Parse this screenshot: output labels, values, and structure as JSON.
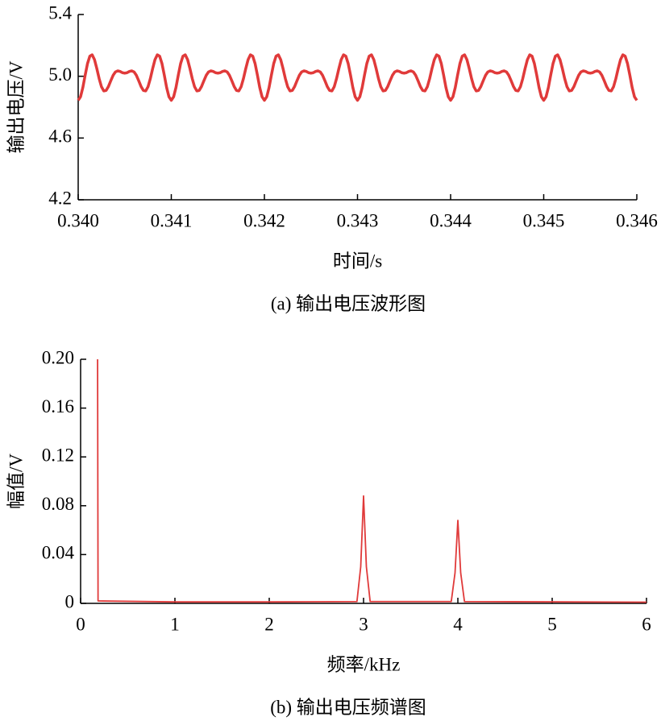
{
  "chart_data": [
    {
      "type": "line",
      "ylabel": "输出电压/V",
      "xlabel": "时间/s",
      "caption": "(a) 输出电压波形图",
      "color": "#e03a3a",
      "line_width": 3.5,
      "xlim": [
        0.34,
        0.346
      ],
      "ylim": [
        4.2,
        5.4
      ],
      "xticks": [
        {
          "value": 0.34,
          "label": "0.340"
        },
        {
          "value": 0.341,
          "label": "0.341"
        },
        {
          "value": 0.342,
          "label": "0.342"
        },
        {
          "value": 0.343,
          "label": "0.343"
        },
        {
          "value": 0.344,
          "label": "0.344"
        },
        {
          "value": 0.345,
          "label": "0.345"
        },
        {
          "value": 0.346,
          "label": "0.346"
        }
      ],
      "yticks": [
        4.2,
        4.6,
        {
          "value": 5.0,
          "label": "5.0"
        },
        5.4
      ],
      "x": [
        0.34,
        0.340025,
        0.34005,
        0.340075,
        0.3401,
        0.340125,
        0.34015,
        0.340175,
        0.3402,
        0.340225,
        0.34025,
        0.340275,
        0.3403,
        0.340325,
        0.34035,
        0.340375,
        0.3404,
        0.340425,
        0.34045,
        0.340475,
        0.3405,
        0.340525,
        0.34055,
        0.340575,
        0.3406,
        0.340625,
        0.34065,
        0.340675,
        0.3407,
        0.340725,
        0.34075,
        0.340775,
        0.3408,
        0.340825,
        0.34085,
        0.340875,
        0.3409,
        0.340925,
        0.34095,
        0.340975,
        0.341,
        0.341025,
        0.34105,
        0.341075,
        0.3411,
        0.341125,
        0.34115,
        0.341175,
        0.3412,
        0.341225,
        0.34125,
        0.341275,
        0.3413,
        0.341325,
        0.34135,
        0.341375,
        0.3414,
        0.341425,
        0.34145,
        0.341475,
        0.3415,
        0.341525,
        0.34155,
        0.341575,
        0.3416,
        0.341625,
        0.34165,
        0.341675,
        0.3417,
        0.341725,
        0.34175,
        0.341775,
        0.3418,
        0.341825,
        0.34185,
        0.341875,
        0.3419,
        0.341925,
        0.34195,
        0.341975,
        0.342,
        0.342025,
        0.34205,
        0.342075,
        0.3421,
        0.342125,
        0.34215,
        0.342175,
        0.3422,
        0.342225,
        0.34225,
        0.342275,
        0.3423,
        0.342325,
        0.34235,
        0.342375,
        0.3424,
        0.342425,
        0.34245,
        0.342475,
        0.3425,
        0.342525,
        0.34255,
        0.342575,
        0.3426,
        0.342625,
        0.34265,
        0.342675,
        0.3427,
        0.342725,
        0.34275,
        0.342775,
        0.3428,
        0.342825,
        0.34285,
        0.342875,
        0.3429,
        0.342925,
        0.34295,
        0.342975,
        0.343,
        0.343025,
        0.34305,
        0.343075,
        0.3431,
        0.343125,
        0.34315,
        0.343175,
        0.3432,
        0.343225,
        0.34325,
        0.343275,
        0.3433,
        0.343325,
        0.34335,
        0.343375,
        0.3434,
        0.343425,
        0.34345,
        0.343475,
        0.3435,
        0.343525,
        0.34355,
        0.343575,
        0.3436,
        0.343625,
        0.34365,
        0.343675,
        0.3437,
        0.343725,
        0.34375,
        0.343775,
        0.3438,
        0.343825,
        0.34385,
        0.343875,
        0.3439,
        0.343925,
        0.34395,
        0.343975,
        0.344,
        0.344025,
        0.34405,
        0.344075,
        0.3441,
        0.344125,
        0.34415,
        0.344175,
        0.3442,
        0.344225,
        0.34425,
        0.344275,
        0.3443,
        0.344325,
        0.34435,
        0.344375,
        0.3444,
        0.344425,
        0.34445,
        0.344475,
        0.3445,
        0.344525,
        0.34455,
        0.344575,
        0.3446,
        0.344625,
        0.34465,
        0.344675,
        0.3447,
        0.344725,
        0.34475,
        0.344775,
        0.3448,
        0.344825,
        0.34485,
        0.344875,
        0.3449,
        0.344925,
        0.34495,
        0.344975,
        0.345,
        0.345025,
        0.34505,
        0.345075,
        0.3451,
        0.345125,
        0.34515,
        0.345175,
        0.3452,
        0.345225,
        0.34525,
        0.345275,
        0.3453,
        0.345325,
        0.34535,
        0.345375,
        0.3454,
        0.345425,
        0.34545,
        0.345475,
        0.3455,
        0.345525,
        0.34555,
        0.345575,
        0.3456,
        0.345625,
        0.34565,
        0.345675,
        0.3457,
        0.345725,
        0.34575,
        0.345775,
        0.3458,
        0.345825,
        0.34585,
        0.345875,
        0.3459,
        0.345925,
        0.34595,
        0.345975,
        0.346
      ],
      "values": [
        4.844,
        4.867,
        4.927,
        5.007,
        5.082,
        5.13,
        5.139,
        5.108,
        5.05,
        4.985,
        4.932,
        4.905,
        4.908,
        4.934,
        4.971,
        5.006,
        5.028,
        5.035,
        5.031,
        5.023,
        5.02,
        5.023,
        5.031,
        5.035,
        5.028,
        5.006,
        4.971,
        4.934,
        4.908,
        4.905,
        4.932,
        4.985,
        5.05,
        5.108,
        5.139,
        5.13,
        5.082,
        5.007,
        4.927,
        4.867,
        4.844,
        4.867,
        4.927,
        5.007,
        5.082,
        5.13,
        5.139,
        5.108,
        5.05,
        4.985,
        4.932,
        4.905,
        4.908,
        4.934,
        4.971,
        5.006,
        5.028,
        5.035,
        5.031,
        5.023,
        5.02,
        5.023,
        5.031,
        5.035,
        5.028,
        5.006,
        4.971,
        4.934,
        4.908,
        4.905,
        4.932,
        4.985,
        5.05,
        5.108,
        5.139,
        5.13,
        5.082,
        5.007,
        4.927,
        4.867,
        4.844,
        4.867,
        4.927,
        5.007,
        5.082,
        5.13,
        5.139,
        5.108,
        5.05,
        4.985,
        4.932,
        4.905,
        4.908,
        4.934,
        4.971,
        5.006,
        5.028,
        5.035,
        5.031,
        5.023,
        5.02,
        5.023,
        5.031,
        5.035,
        5.028,
        5.006,
        4.971,
        4.934,
        4.908,
        4.905,
        4.932,
        4.985,
        5.05,
        5.108,
        5.139,
        5.13,
        5.082,
        5.007,
        4.927,
        4.867,
        4.844,
        4.867,
        4.927,
        5.007,
        5.082,
        5.13,
        5.139,
        5.108,
        5.05,
        4.985,
        4.932,
        4.905,
        4.908,
        4.934,
        4.971,
        5.006,
        5.028,
        5.035,
        5.031,
        5.023,
        5.02,
        5.023,
        5.031,
        5.035,
        5.028,
        5.006,
        4.971,
        4.934,
        4.908,
        4.905,
        4.932,
        4.985,
        5.05,
        5.108,
        5.139,
        5.13,
        5.082,
        5.007,
        4.927,
        4.867,
        4.844,
        4.867,
        4.927,
        5.007,
        5.082,
        5.13,
        5.139,
        5.108,
        5.05,
        4.985,
        4.932,
        4.905,
        4.908,
        4.934,
        4.971,
        5.006,
        5.028,
        5.035,
        5.031,
        5.023,
        5.02,
        5.023,
        5.031,
        5.035,
        5.028,
        5.006,
        4.971,
        4.934,
        4.908,
        4.905,
        4.932,
        4.985,
        5.05,
        5.108,
        5.139,
        5.13,
        5.082,
        5.007,
        4.927,
        4.867,
        4.844,
        4.867,
        4.927,
        5.007,
        5.082,
        5.13,
        5.139,
        5.108,
        5.05,
        4.985,
        4.932,
        4.905,
        4.908,
        4.934,
        4.971,
        5.006,
        5.028,
        5.035,
        5.031,
        5.023,
        5.02,
        5.023,
        5.031,
        5.035,
        5.028,
        5.006,
        4.971,
        4.934,
        4.908,
        4.905,
        4.932,
        4.985,
        5.05,
        5.108,
        5.139,
        5.13,
        5.082,
        5.007,
        4.927,
        4.867,
        4.844
      ]
    },
    {
      "type": "line",
      "ylabel": "幅值/V",
      "xlabel": "频率/kHz",
      "caption": "(b) 输出电压频谱图",
      "color": "#e03a3a",
      "line_width": 1.8,
      "xlim": [
        0,
        6
      ],
      "ylim": [
        0,
        0.2
      ],
      "xticks": [
        0,
        1,
        2,
        3,
        4,
        5,
        6
      ],
      "yticks": [
        0,
        0.04,
        0.08,
        0.12,
        0.16,
        {
          "value": 0.2,
          "label": "0.20"
        }
      ],
      "x": [
        0.18,
        0.185,
        1,
        2,
        2.93,
        2.97,
        3.0,
        3.03,
        3.07,
        3.93,
        3.97,
        4.0,
        4.03,
        4.07,
        6
      ],
      "values": [
        0.2,
        0.002,
        0.0012,
        0.0012,
        0.0015,
        0.03,
        0.088,
        0.03,
        0.0015,
        0.0015,
        0.025,
        0.068,
        0.025,
        0.0015,
        0.001
      ]
    }
  ]
}
